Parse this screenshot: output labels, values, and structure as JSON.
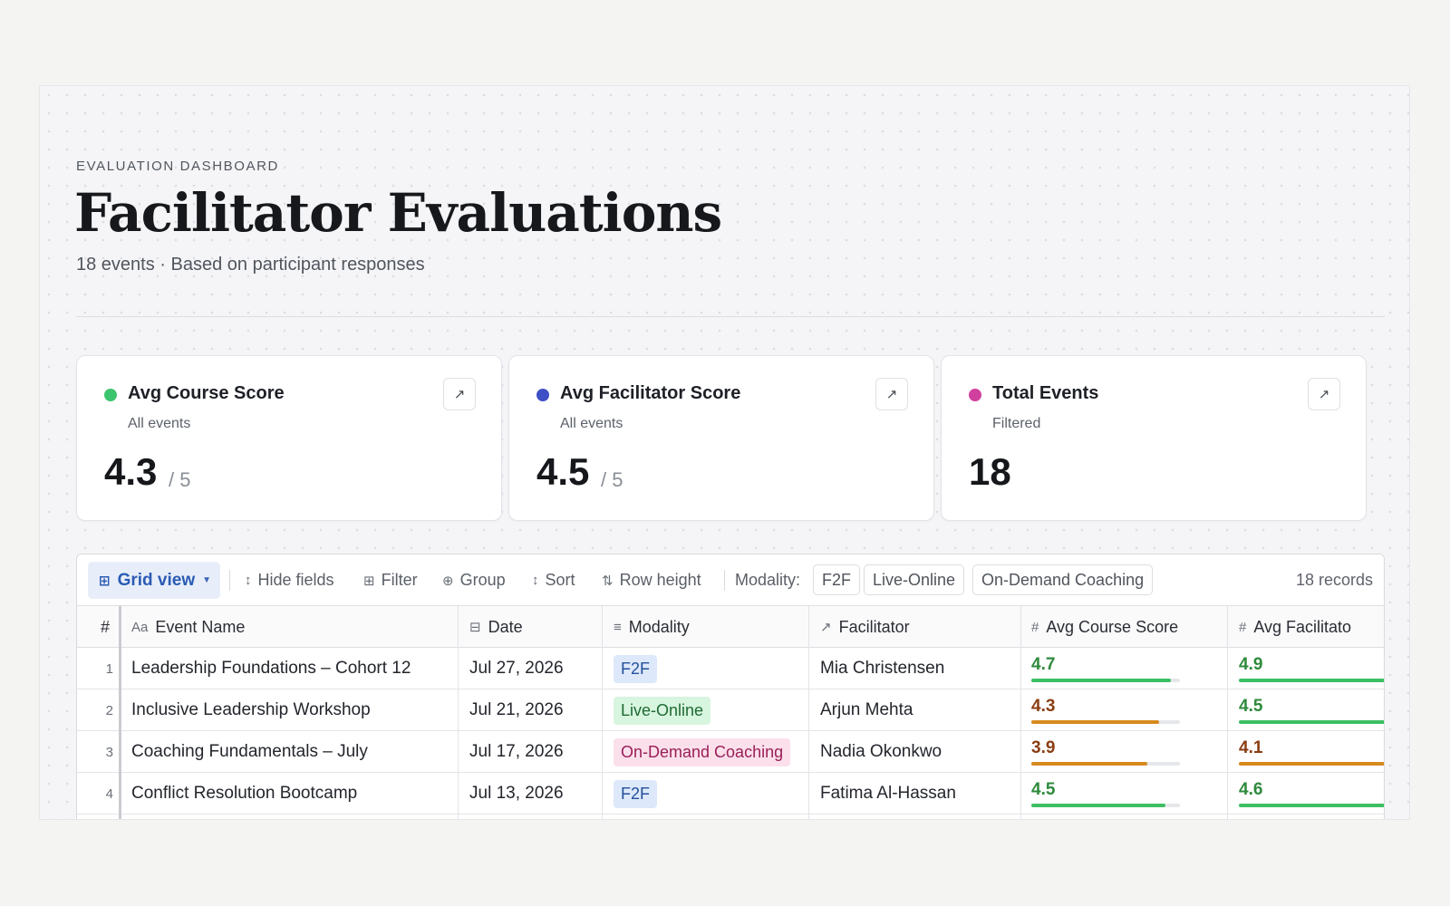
{
  "header": {
    "eyebrow": "EVALUATION DASHBOARD",
    "title": "Facilitator Evaluations",
    "subtitle": "18 events · Based on participant responses"
  },
  "cards": [
    {
      "title": "Avg Course Score",
      "subtitle": "All events",
      "value": "4.3",
      "denom": "/ 5",
      "dot_color": "#3cc46e"
    },
    {
      "title": "Avg Facilitator Score",
      "subtitle": "All events",
      "value": "4.5",
      "denom": "/ 5",
      "dot_color": "#3f4fc4"
    },
    {
      "title": "Total Events",
      "subtitle": "Filtered",
      "value": "18",
      "denom": "",
      "dot_color": "#d13f9f"
    }
  ],
  "toolbar": {
    "grid_view": "Grid view",
    "hide_fields": "Hide fields",
    "filter": "Filter",
    "group": "Group",
    "sort": "Sort",
    "row_height": "Row height",
    "modality_label": "Modality:",
    "modality_chips": [
      "F2F",
      "Live-Online",
      "On-Demand Coaching"
    ],
    "records": "18 records"
  },
  "table": {
    "columns": {
      "num": "#",
      "event_name": "Event Name",
      "date": "Date",
      "modality": "Modality",
      "facilitator": "Facilitator",
      "course_score": "Avg Course Score",
      "facilitator_score": "Avg Facilitato"
    },
    "column_glyphs": {
      "event_name": "Aa",
      "date": "⊟",
      "modality": "≡",
      "facilitator": "↗",
      "course_score": "#",
      "facilitator_score": "#"
    },
    "rows": [
      {
        "num": "1",
        "event_name": "Leadership Foundations – Cohort 12",
        "date": "Jul 27, 2026",
        "modality": "F2F",
        "facilitator": "Mia Christensen",
        "course_score": "4.7",
        "facilitator_score": "4.9"
      },
      {
        "num": "2",
        "event_name": "Inclusive Leadership Workshop",
        "date": "Jul 21, 2026",
        "modality": "Live-Online",
        "facilitator": "Arjun Mehta",
        "course_score": "4.3",
        "facilitator_score": "4.5"
      },
      {
        "num": "3",
        "event_name": "Coaching Fundamentals – July",
        "date": "Jul 17, 2026",
        "modality": "On-Demand Coaching",
        "facilitator": "Nadia Okonkwo",
        "course_score": "3.9",
        "facilitator_score": "4.1"
      },
      {
        "num": "4",
        "event_name": "Conflict Resolution Bootcamp",
        "date": "Jul 13, 2026",
        "modality": "F2F",
        "facilitator": "Fatima Al-Hassan",
        "course_score": "4.5",
        "facilitator_score": "4.6"
      }
    ]
  },
  "colors": {
    "score_high": "#2f8a3c",
    "score_high_bar": "#3cbf63",
    "score_mid": "#8a3d12",
    "score_mid_bar": "#d68a1e",
    "modality": {
      "F2F": {
        "bg": "#dde9fa",
        "fg": "#24509c"
      },
      "Live-Online": {
        "bg": "#d8f5df",
        "fg": "#1e6b33"
      },
      "On-Demand Coaching": {
        "bg": "#fbe0ec",
        "fg": "#9a1f57"
      }
    }
  }
}
